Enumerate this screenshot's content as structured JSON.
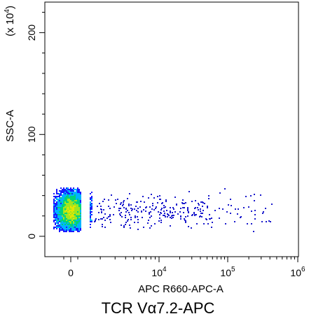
{
  "chart_data": {
    "type": "scatter",
    "subtype": "flow-cytometry-density-dot-plot",
    "xlabel": "APC R660-APC-A",
    "ylabel": "SSC-A",
    "y_multiplier_label": "(x 10",
    "y_multiplier_exp": "4",
    "x_scale": "biexponential",
    "y_scale": "linear",
    "ylim": [
      -20,
      230
    ],
    "x_ticks": [
      {
        "value": 0,
        "base": "0",
        "exp": ""
      },
      {
        "value": 10000,
        "base": "10",
        "exp": "4"
      },
      {
        "value": 100000,
        "base": "10",
        "exp": "5"
      },
      {
        "value": 1000000,
        "base": "10",
        "exp": "6"
      }
    ],
    "y_ticks": [
      {
        "value": 0,
        "label": "0"
      },
      {
        "value": 100,
        "label": "100"
      },
      {
        "value": 200,
        "label": "200"
      }
    ],
    "grid": false,
    "legend": "none",
    "populations": [
      {
        "name": "",
        "x_center": 0,
        "x_spread": 1100,
        "y_center": 25,
        "y_spread": 9,
        "y_range": [
          5,
          48
        ],
        "density": "high"
      },
      {
        "name": "",
        "x_center": 20000,
        "x_range": [
          1500,
          600000
        ],
        "y_center": 25,
        "y_range": [
          5,
          48
        ],
        "density": "sparse"
      }
    ],
    "color_scale": [
      "#1a1aff",
      "#00b4ff",
      "#00d27a",
      "#a0e61e",
      "#e6e600"
    ],
    "sparse_color": "#1a1acc"
  },
  "caption": "TCR Vα7.2-APC"
}
